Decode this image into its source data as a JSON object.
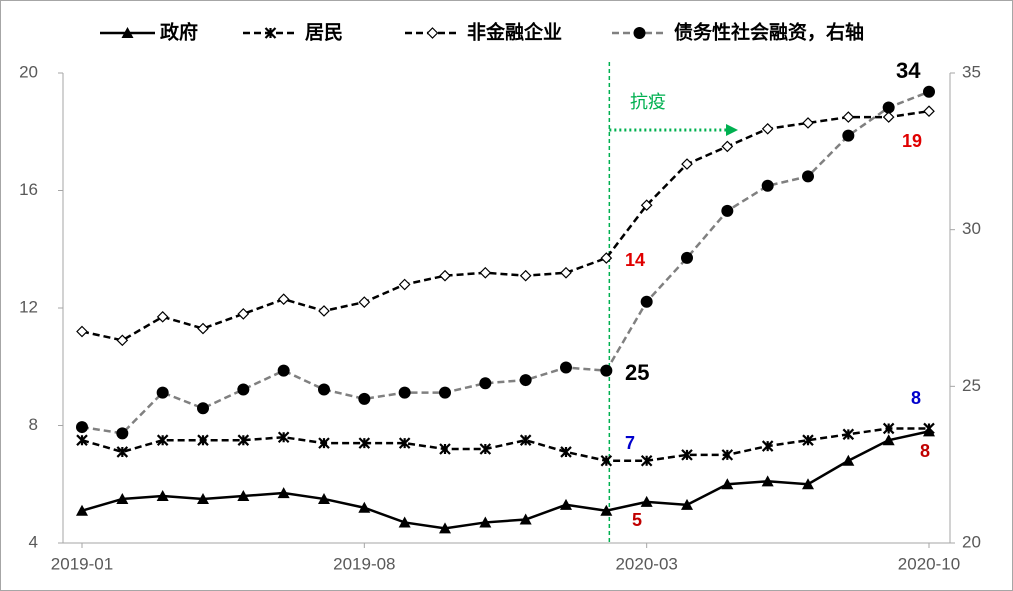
{
  "chart_data": {
    "type": "line",
    "categories": [
      "2019-01",
      null,
      null,
      null,
      null,
      null,
      null,
      "2019-08",
      null,
      null,
      null,
      null,
      null,
      null,
      "2020-03",
      null,
      null,
      null,
      null,
      null,
      null,
      "2020-10"
    ],
    "ylim": [
      4,
      20
    ],
    "yticks": [
      4,
      8,
      12,
      16,
      20
    ],
    "y2lim": [
      20,
      35
    ],
    "y2ticks": [
      20,
      25,
      30,
      35
    ],
    "series": [
      {
        "name": "政府",
        "color": "#000000",
        "marker": "triangle",
        "dash": false,
        "values": [
          5.1,
          5.5,
          5.6,
          5.5,
          5.6,
          5.7,
          5.5,
          5.2,
          4.7,
          4.5,
          4.7,
          4.8,
          5.3,
          5.1,
          5.4,
          5.3,
          6.0,
          6.1,
          6.0,
          6.8,
          7.5,
          7.8
        ]
      },
      {
        "name": "居民",
        "color": "#000000",
        "marker": "x",
        "dash": true,
        "values": [
          7.5,
          7.1,
          7.5,
          7.5,
          7.5,
          7.6,
          7.4,
          7.4,
          7.4,
          7.2,
          7.2,
          7.5,
          7.1,
          6.8,
          6.8,
          7.0,
          7.0,
          7.3,
          7.5,
          7.7,
          7.9,
          7.9
        ]
      },
      {
        "name": "非金融企业",
        "color": "#000000",
        "marker": "diamond",
        "dash": true,
        "values": [
          11.2,
          10.9,
          11.7,
          11.3,
          11.8,
          12.3,
          11.9,
          12.2,
          12.8,
          13.1,
          13.2,
          13.1,
          13.2,
          13.7,
          15.5,
          16.9,
          17.5,
          18.1,
          18.3,
          18.5,
          18.5,
          18.7
        ]
      },
      {
        "name": "债务性社会融资，右轴",
        "color": "#808080",
        "marker": "circle",
        "dash": true,
        "axis": "y2",
        "values": [
          23.7,
          23.5,
          24.8,
          24.3,
          24.9,
          25.5,
          24.9,
          24.6,
          24.8,
          24.8,
          25.1,
          25.2,
          25.6,
          25.5,
          27.7,
          29.1,
          30.6,
          31.4,
          31.7,
          33.0,
          33.9,
          34.4
        ]
      }
    ],
    "event_label": "抗疫",
    "event_color": "#00b050",
    "annotations": [
      {
        "text": "14",
        "color": "#e00000"
      },
      {
        "text": "25",
        "color": "#000000"
      },
      {
        "text": "7",
        "color": "#0000cc"
      },
      {
        "text": "5",
        "color": "#c00000"
      },
      {
        "text": "34",
        "color": "#000000"
      },
      {
        "text": "19",
        "color": "#e00000"
      },
      {
        "text": "8",
        "color": "#0000cc"
      },
      {
        "text": "8",
        "color": "#c00000"
      }
    ]
  }
}
